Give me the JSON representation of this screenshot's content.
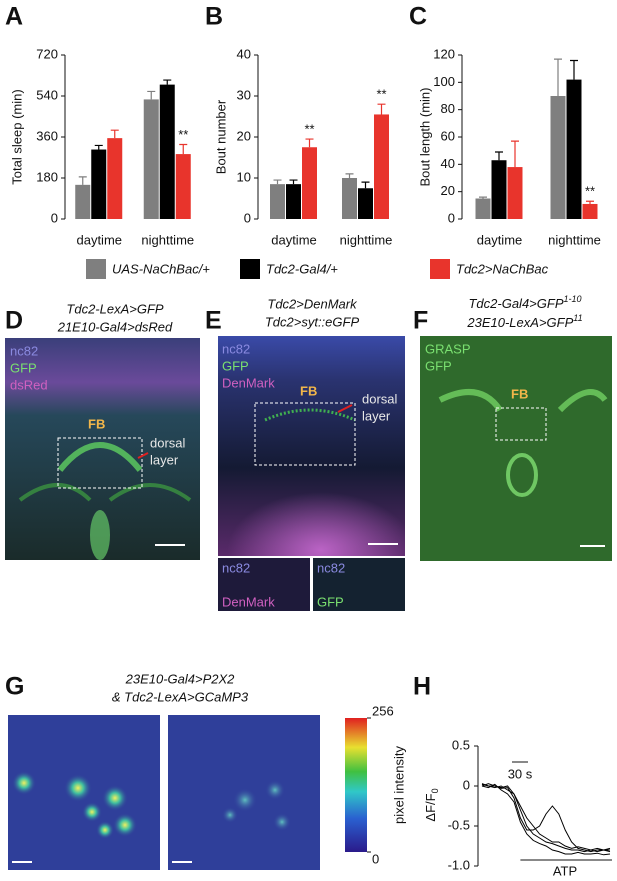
{
  "chart_data": [
    {
      "type": "bar",
      "panel": "A",
      "ylabel": "Total sleep (min)",
      "categories": [
        "daytime",
        "nighttime"
      ],
      "series": [
        {
          "name": "UAS-NaChBac/+",
          "color": "#7f7f7f",
          "values": [
            150,
            525
          ],
          "errors": [
            35,
            35
          ],
          "significance": [
            null,
            null
          ]
        },
        {
          "name": "Tdc2-Gal4/+",
          "color": "#000000",
          "values": [
            305,
            590
          ],
          "errors": [
            18,
            20
          ],
          "significance": [
            null,
            null
          ]
        },
        {
          "name": "Tdc2>NaChBac",
          "color": "#e8342c",
          "values": [
            355,
            285
          ],
          "errors": [
            35,
            42
          ],
          "significance": [
            null,
            "**"
          ]
        }
      ],
      "ylim": [
        0,
        720
      ],
      "yticks": [
        0,
        180,
        360,
        540,
        720
      ]
    },
    {
      "type": "bar",
      "panel": "B",
      "ylabel": "Bout number",
      "categories": [
        "daytime",
        "nighttime"
      ],
      "series": [
        {
          "color": "#7f7f7f",
          "values": [
            8.5,
            10
          ],
          "errors": [
            1,
            1
          ],
          "significance": [
            null,
            null
          ]
        },
        {
          "color": "#000000",
          "values": [
            8.5,
            7.5
          ],
          "errors": [
            1,
            1.5
          ],
          "significance": [
            null,
            null
          ]
        },
        {
          "color": "#e8342c",
          "values": [
            17.5,
            25.5
          ],
          "errors": [
            2,
            2.5
          ],
          "significance": [
            "**",
            "**"
          ]
        }
      ],
      "ylim": [
        0,
        40
      ],
      "yticks": [
        0,
        10,
        20,
        30,
        40
      ]
    },
    {
      "type": "bar",
      "panel": "C",
      "ylabel": "Bout length (min)",
      "categories": [
        "daytime",
        "nighttime"
      ],
      "series": [
        {
          "color": "#7f7f7f",
          "values": [
            15,
            90
          ],
          "errors": [
            1,
            27
          ],
          "significance": [
            null,
            null
          ]
        },
        {
          "color": "#000000",
          "values": [
            43,
            102
          ],
          "errors": [
            6,
            14
          ],
          "significance": [
            null,
            null
          ]
        },
        {
          "color": "#e8342c",
          "values": [
            38,
            11
          ],
          "errors": [
            19,
            2
          ],
          "significance": [
            null,
            "**"
          ]
        }
      ],
      "ylim": [
        0,
        120
      ],
      "yticks": [
        0,
        20,
        40,
        60,
        80,
        100,
        120
      ]
    },
    {
      "type": "line",
      "panel": "H",
      "ylabel": {
        "text": "ΔF/F",
        "sub": "0"
      },
      "scale_label": "30 s",
      "stimulus": "ATP",
      "x": [
        0,
        1,
        2,
        3,
        4,
        5,
        6,
        7,
        8,
        9,
        10,
        11,
        12,
        13,
        14,
        15,
        16,
        17,
        18,
        19,
        20
      ],
      "series": [
        {
          "color": "#000000",
          "values": [
            0.02,
            0,
            -0.02,
            0,
            -0.05,
            -0.1,
            -0.3,
            -0.5,
            -0.6,
            -0.65,
            -0.7,
            -0.72,
            -0.75,
            -0.78,
            -0.8,
            -0.8,
            -0.82,
            -0.8,
            -0.82,
            -0.8,
            -0.82
          ]
        },
        {
          "color": "#000000",
          "values": [
            0,
            0.03,
            0,
            -0.03,
            -0.02,
            -0.15,
            -0.4,
            -0.55,
            -0.55,
            -0.5,
            -0.35,
            -0.25,
            -0.35,
            -0.55,
            -0.7,
            -0.78,
            -0.8,
            -0.82,
            -0.8,
            -0.8,
            -0.8
          ]
        },
        {
          "color": "#000000",
          "values": [
            0,
            -0.02,
            0.02,
            -0.05,
            -0.1,
            -0.2,
            -0.45,
            -0.6,
            -0.68,
            -0.72,
            -0.75,
            -0.8,
            -0.82,
            -0.85,
            -0.85,
            -0.83,
            -0.85,
            -0.85,
            -0.84,
            -0.86,
            -0.85
          ]
        },
        {
          "color": "#000000",
          "values": [
            0.03,
            0,
            0,
            -0.02,
            0,
            -0.1,
            -0.25,
            -0.4,
            -0.5,
            -0.6,
            -0.65,
            -0.7,
            -0.7,
            -0.75,
            -0.78,
            -0.76,
            -0.78,
            -0.8,
            -0.78,
            -0.8,
            -0.78
          ]
        }
      ],
      "ylim": [
        -1.0,
        0.5
      ],
      "yticks": [
        {
          "value": -1.0,
          "label": "-1.0"
        },
        -0.5,
        0,
        0.5
      ]
    }
  ],
  "panels": {
    "D": {
      "letter": "D",
      "title": [
        "Tdc2-LexA>GFP",
        "21E10-Gal4>dsRed"
      ],
      "channels": [
        "nc82",
        "GFP",
        "dsRed"
      ],
      "region": "FB",
      "layer": [
        "dorsal",
        "layer"
      ]
    },
    "E": {
      "letter": "E",
      "title": [
        "Tdc2>DenMark",
        "Tdc2>syt::eGFP"
      ],
      "channels": [
        "nc82",
        "GFP",
        "DenMark"
      ],
      "region": "FB",
      "layer": [
        "dorsal",
        "layer"
      ],
      "inset_left": [
        "nc82",
        "DenMark"
      ],
      "inset_right": [
        "nc82",
        "GFP"
      ]
    },
    "F": {
      "letter": "F",
      "title": [
        {
          "text": "Tdc2-Gal4>GFP",
          "sup": "1-10"
        },
        {
          "text": "23E10-LexA>GFP",
          "sup": "11"
        }
      ],
      "channels": [
        "GRASP",
        "GFP"
      ],
      "region": "FB"
    },
    "G": {
      "letter": "G",
      "title": [
        "23E10-Gal4>P2X2",
        "& Tdc2-LexA>GCaMP3"
      ],
      "colorbar": {
        "label": "pixel intensity",
        "lim": [
          0,
          256
        ],
        "ticks": [
          0,
          256
        ]
      }
    }
  }
}
